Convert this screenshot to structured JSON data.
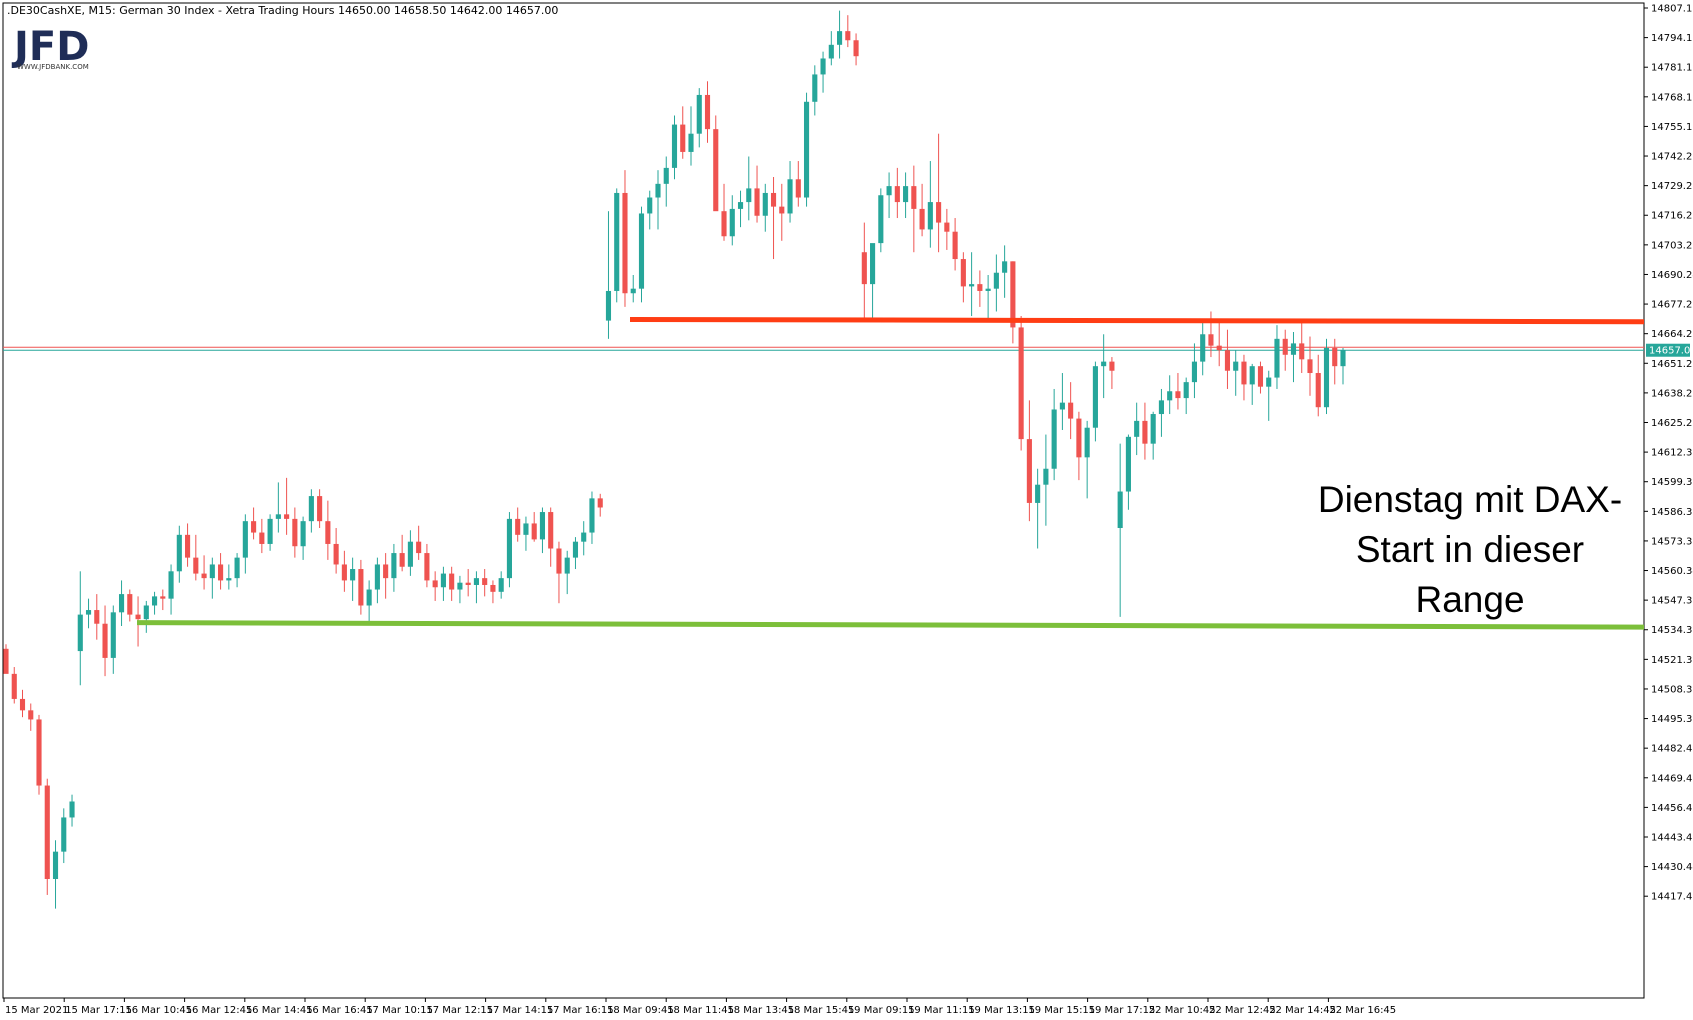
{
  "header": {
    "text": ".DE30CashXE, M15:  German 30 Index  - Xetra Trading Hours  14650.00 14658.50 14642.00 14657.00"
  },
  "logo": {
    "main": "JFD",
    "sub": "WWW.JFDBANK.COM"
  },
  "current_price_label": "14657.00",
  "annotation": [
    "Dienstag mit DAX-",
    "Start in dieser",
    "Range"
  ],
  "colors": {
    "bull": "#26a69a",
    "bear": "#ef5350",
    "resistance": "#ff3d14",
    "support": "#7cbf3a",
    "bid_line": "#ef5350",
    "ask_line": "#26a69a"
  },
  "chart_data": {
    "type": "candlestick",
    "symbol": ".DE30CashXE",
    "timeframe": "M15",
    "title": "German 30 Index - Xetra Trading Hours",
    "ohlc_header": {
      "open": 14650.0,
      "high": 14658.5,
      "low": 14642.0,
      "close": 14657.0
    },
    "ylim": [
      14410,
      14808
    ],
    "y_ticks": [
      "14807.15",
      "14794.16",
      "14781.17",
      "14768.18",
      "14755.19",
      "14742.20",
      "14729.21",
      "14716.22",
      "14703.23",
      "14690.24",
      "14677.25",
      "14664.26",
      "14651.27",
      "14638.28",
      "14625.29",
      "14612.30",
      "14599.31",
      "14586.32",
      "14573.33",
      "14560.34",
      "14547.35",
      "14534.36",
      "14521.37",
      "14508.38",
      "14495.39",
      "14482.40",
      "14469.41",
      "14456.42",
      "14443.43",
      "14430.44",
      "14417.45"
    ],
    "x_ticks": [
      "15 Mar 2021",
      "15 Mar 17:15",
      "16 Mar 10:45",
      "16 Mar 12:45",
      "16 Mar 14:45",
      "16 Mar 16:45",
      "17 Mar 10:15",
      "17 Mar 12:15",
      "17 Mar 14:15",
      "17 Mar 16:15",
      "18 Mar 09:45",
      "18 Mar 11:45",
      "18 Mar 13:45",
      "18 Mar 15:45",
      "19 Mar 09:15",
      "19 Mar 11:15",
      "19 Mar 13:15",
      "19 Mar 15:15",
      "19 Mar 17:15",
      "22 Mar 10:45",
      "22 Mar 12:45",
      "22 Mar 14:45",
      "22 Mar 16:45"
    ],
    "current_price": 14657.0,
    "lines": [
      {
        "name": "resistance",
        "price_start": 14670.5,
        "price_end": 14669.5,
        "color": "#ff3d14"
      },
      {
        "name": "support",
        "price_start": 14537.5,
        "price_end": 14535.5,
        "color": "#7cbf3a"
      }
    ],
    "candles": [
      [
        14526,
        14528,
        14516,
        14515
      ],
      [
        14515,
        14518,
        14502,
        14504
      ],
      [
        14504,
        14508,
        14496,
        14499
      ],
      [
        14499,
        14502,
        14490,
        14495
      ],
      [
        14495,
        14497,
        14462,
        14466
      ],
      [
        14466,
        14469,
        14418,
        14425
      ],
      [
        14425,
        14442,
        14412,
        14437
      ],
      [
        14437,
        14456,
        14432,
        14452
      ],
      [
        14452,
        14462,
        14448,
        14459
      ],
      [
        14525,
        14560,
        14510,
        14541
      ],
      [
        14541,
        14548,
        14535,
        14543
      ],
      [
        14543,
        14550,
        14530,
        14537
      ],
      [
        14537,
        14545,
        14514,
        14522
      ],
      [
        14522,
        14545,
        14515,
        14542
      ],
      [
        14542,
        14556,
        14536,
        14550
      ],
      [
        14550,
        14552,
        14538,
        14541
      ],
      [
        14541,
        14549,
        14527,
        14539
      ],
      [
        14539,
        14547,
        14533,
        14545
      ],
      [
        14545,
        14551,
        14541,
        14549
      ],
      [
        14549,
        14552,
        14543,
        14548
      ],
      [
        14548,
        14563,
        14541,
        14560
      ],
      [
        14560,
        14580,
        14555,
        14576
      ],
      [
        14576,
        14581,
        14562,
        14566
      ],
      [
        14566,
        14576,
        14556,
        14559
      ],
      [
        14559,
        14567,
        14552,
        14557
      ],
      [
        14557,
        14566,
        14548,
        14563
      ],
      [
        14563,
        14568,
        14552,
        14556
      ],
      [
        14556,
        14563,
        14552,
        14557
      ],
      [
        14557,
        14568,
        14553,
        14566
      ],
      [
        14566,
        14585,
        14559,
        14582
      ],
      [
        14582,
        14588,
        14574,
        14577
      ],
      [
        14577,
        14583,
        14568,
        14572
      ],
      [
        14572,
        14585,
        14569,
        14583
      ],
      [
        14583,
        14599,
        14577,
        14585
      ],
      [
        14585,
        14601,
        14576,
        14583
      ],
      [
        14583,
        14588,
        14566,
        14571
      ],
      [
        14571,
        14584,
        14565,
        14582
      ],
      [
        14582,
        14596,
        14577,
        14593
      ],
      [
        14593,
        14596,
        14579,
        14582
      ],
      [
        14582,
        14591,
        14565,
        14572
      ],
      [
        14572,
        14579,
        14559,
        14563
      ],
      [
        14563,
        14569,
        14551,
        14556
      ],
      [
        14556,
        14566,
        14547,
        14561
      ],
      [
        14561,
        14565,
        14541,
        14545
      ],
      [
        14545,
        14556,
        14538,
        14552
      ],
      [
        14552,
        14566,
        14546,
        14563
      ],
      [
        14563,
        14568,
        14548,
        14557
      ],
      [
        14557,
        14572,
        14551,
        14568
      ],
      [
        14568,
        14576,
        14560,
        14562
      ],
      [
        14562,
        14578,
        14558,
        14573
      ],
      [
        14573,
        14580,
        14565,
        14568
      ],
      [
        14568,
        14572,
        14553,
        14556
      ],
      [
        14556,
        14560,
        14547,
        14553
      ],
      [
        14553,
        14562,
        14547,
        14559
      ],
      [
        14559,
        14562,
        14547,
        14552
      ],
      [
        14552,
        14558,
        14546,
        14555
      ],
      [
        14555,
        14561,
        14549,
        14554
      ],
      [
        14554,
        14560,
        14546,
        14557
      ],
      [
        14557,
        14561,
        14549,
        14554
      ],
      [
        14554,
        14556,
        14546,
        14551
      ],
      [
        14551,
        14560,
        14548,
        14557
      ],
      [
        14557,
        14586,
        14553,
        14583
      ],
      [
        14583,
        14588,
        14573,
        14576
      ],
      [
        14576,
        14584,
        14569,
        14581
      ],
      [
        14581,
        14586,
        14573,
        14574
      ],
      [
        14574,
        14588,
        14568,
        14586
      ],
      [
        14586,
        14588,
        14562,
        14570
      ],
      [
        14570,
        14573,
        14546,
        14559
      ],
      [
        14559,
        14569,
        14550,
        14566
      ],
      [
        14566,
        14575,
        14561,
        14573
      ],
      [
        14573,
        14582,
        14567,
        14577
      ],
      [
        14577,
        14595,
        14572,
        14592
      ],
      [
        14592,
        14594,
        14584,
        14588
      ],
      [
        14670,
        14718,
        14662,
        14683
      ],
      [
        14683,
        14728,
        14678,
        14726
      ],
      [
        14726,
        14736,
        14676,
        14682
      ],
      [
        14682,
        14690,
        14678,
        14684
      ],
      [
        14684,
        14720,
        14678,
        14717
      ],
      [
        14717,
        14727,
        14710,
        14724
      ],
      [
        14724,
        14736,
        14710,
        14730
      ],
      [
        14730,
        14742,
        14720,
        14737
      ],
      [
        14737,
        14760,
        14732,
        14756
      ],
      [
        14756,
        14764,
        14741,
        14744
      ],
      [
        14744,
        14764,
        14738,
        14752
      ],
      [
        14752,
        14772,
        14746,
        14769
      ],
      [
        14769,
        14775,
        14748,
        14754
      ],
      [
        14754,
        14760,
        14720,
        14718
      ],
      [
        14718,
        14730,
        14705,
        14707
      ],
      [
        14707,
        14725,
        14703,
        14719
      ],
      [
        14719,
        14727,
        14711,
        14722
      ],
      [
        14722,
        14742,
        14714,
        14728
      ],
      [
        14728,
        14738,
        14713,
        14716
      ],
      [
        14716,
        14730,
        14709,
        14726
      ],
      [
        14726,
        14733,
        14697,
        14720
      ],
      [
        14720,
        14730,
        14705,
        14717
      ],
      [
        14717,
        14740,
        14713,
        14732
      ],
      [
        14732,
        14740,
        14720,
        14724
      ],
      [
        14724,
        14770,
        14720,
        14766
      ],
      [
        14766,
        14782,
        14760,
        14778
      ],
      [
        14778,
        14788,
        14770,
        14785
      ],
      [
        14785,
        14797,
        14782,
        14791
      ],
      [
        14791,
        14806,
        14785,
        14797
      ],
      [
        14797,
        14804,
        14790,
        14793
      ],
      [
        14793,
        14796,
        14782,
        14786
      ],
      [
        14700,
        14713,
        14670,
        14686
      ],
      [
        14686,
        14703,
        14670,
        14704
      ],
      [
        14704,
        14728,
        14700,
        14725
      ],
      [
        14725,
        14735,
        14715,
        14729
      ],
      [
        14729,
        14737,
        14715,
        14722
      ],
      [
        14722,
        14735,
        14715,
        14729
      ],
      [
        14729,
        14738,
        14700,
        14719
      ],
      [
        14719,
        14730,
        14707,
        14710
      ],
      [
        14710,
        14740,
        14702,
        14722
      ],
      [
        14722,
        14752,
        14700,
        14713
      ],
      [
        14713,
        14719,
        14701,
        14709
      ],
      [
        14709,
        14715,
        14692,
        14697
      ],
      [
        14697,
        14700,
        14678,
        14685
      ],
      [
        14685,
        14700,
        14672,
        14686
      ],
      [
        14686,
        14692,
        14676,
        14683
      ],
      [
        14683,
        14690,
        14671,
        14684
      ],
      [
        14684,
        14699,
        14674,
        14691
      ],
      [
        14691,
        14703,
        14680,
        14696
      ],
      [
        14696,
        14696,
        14660,
        14667
      ],
      [
        14667,
        14672,
        14613,
        14618
      ],
      [
        14618,
        14635,
        14582,
        14590
      ],
      [
        14590,
        14605,
        14570,
        14598
      ],
      [
        14598,
        14620,
        14580,
        14605
      ],
      [
        14605,
        14640,
        14600,
        14631
      ],
      [
        14631,
        14647,
        14622,
        14634
      ],
      [
        14634,
        14643,
        14618,
        14627
      ],
      [
        14627,
        14630,
        14600,
        14610
      ],
      [
        14610,
        14626,
        14592,
        14623
      ],
      [
        14623,
        14652,
        14617,
        14650
      ],
      [
        14650,
        14664,
        14636,
        14652
      ],
      [
        14652,
        14654,
        14640,
        14648
      ],
      [
        14579,
        14616,
        14540,
        14595
      ],
      [
        14595,
        14620,
        14587,
        14619
      ],
      [
        14619,
        14634,
        14611,
        14626
      ],
      [
        14626,
        14634,
        14609,
        14616
      ],
      [
        14616,
        14630,
        14609,
        14629
      ],
      [
        14629,
        14640,
        14619,
        14635
      ],
      [
        14635,
        14646,
        14629,
        14639
      ],
      [
        14639,
        14647,
        14631,
        14636
      ],
      [
        14636,
        14645,
        14629,
        14643
      ],
      [
        14643,
        14660,
        14636,
        14652
      ],
      [
        14652,
        14670,
        14646,
        14664
      ],
      [
        14664,
        14674,
        14654,
        14659
      ],
      [
        14659,
        14669,
        14650,
        14657
      ],
      [
        14657,
        14666,
        14640,
        14648
      ],
      [
        14648,
        14657,
        14637,
        14652
      ],
      [
        14652,
        14655,
        14635,
        14642
      ],
      [
        14642,
        14651,
        14633,
        14650
      ],
      [
        14650,
        14652,
        14638,
        14641
      ],
      [
        14641,
        14648,
        14626,
        14645
      ],
      [
        14645,
        14668,
        14640,
        14662
      ],
      [
        14662,
        14666,
        14648,
        14655
      ],
      [
        14655,
        14665,
        14643,
        14660
      ],
      [
        14660,
        14669,
        14647,
        14653
      ],
      [
        14653,
        14663,
        14637,
        14647
      ],
      [
        14647,
        14655,
        14628,
        14632
      ],
      [
        14632,
        14662,
        14629,
        14658
      ],
      [
        14658,
        14662,
        14642,
        14650
      ],
      [
        14650,
        14658,
        14642,
        14657
      ]
    ]
  }
}
